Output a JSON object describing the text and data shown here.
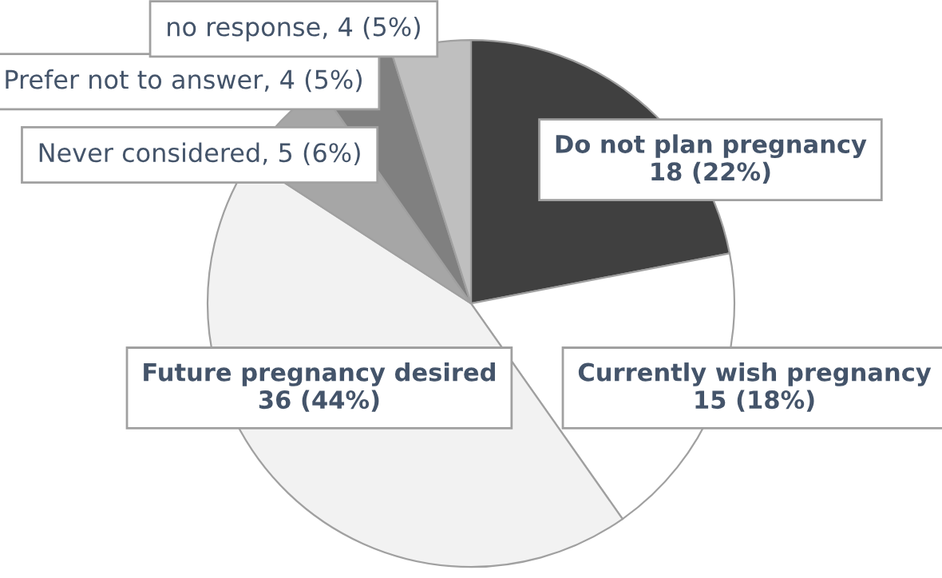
{
  "chart_data": {
    "type": "pie",
    "categories": [
      "Do not plan pregnancy",
      "Currently wish pregnancy",
      "Future pregnancy desired",
      "Never considered",
      "Prefer not to answer",
      "no response"
    ],
    "values": [
      18,
      15,
      36,
      5,
      4,
      4
    ],
    "value_labels": [
      "18 (22%)",
      "15 (18%)",
      "36 (44%)",
      "5 (6%)",
      "4 (5%)",
      "4 (5%)"
    ],
    "colors": [
      "#404040",
      "#ffffff",
      "#f2f2f2",
      "#a6a6a6",
      "#808080",
      "#bfbfbf"
    ],
    "legend": false
  }
}
